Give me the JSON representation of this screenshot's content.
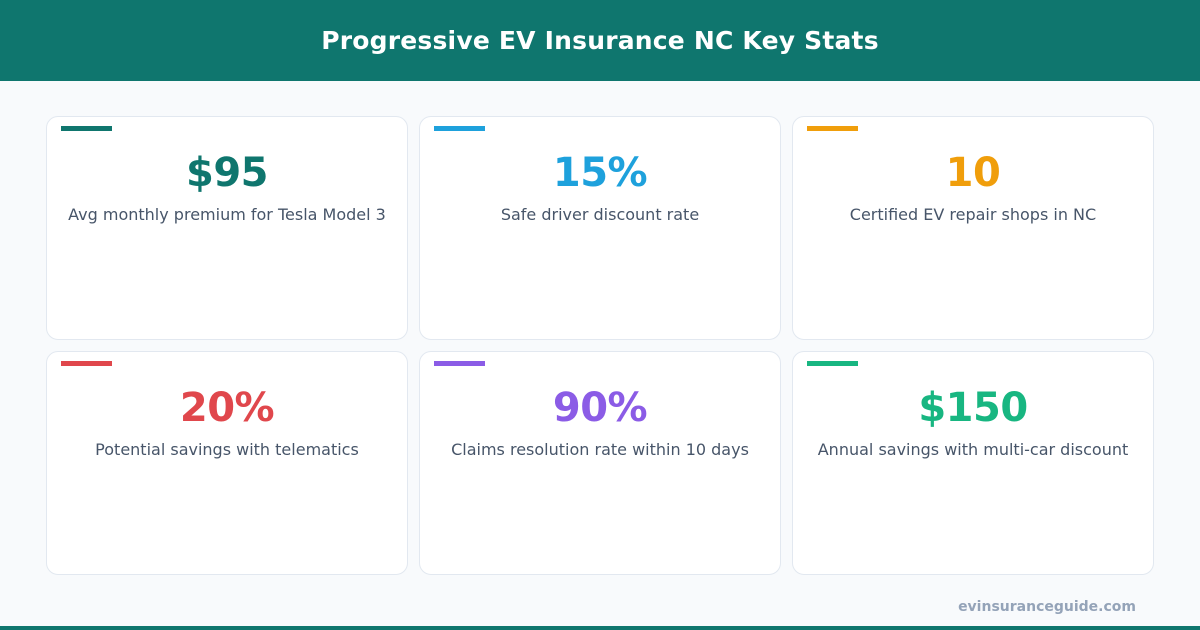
{
  "header": {
    "title": "Progressive EV Insurance NC Key Stats"
  },
  "stats": [
    {
      "value": "$95",
      "label": "Avg monthly premium for Tesla Model 3",
      "color": "#0f766e"
    },
    {
      "value": "15%",
      "label": "Safe driver discount rate",
      "color": "#1ea1dc"
    },
    {
      "value": "10",
      "label": "Certified EV repair shops in NC",
      "color": "#f09e0b"
    },
    {
      "value": "20%",
      "label": "Potential savings with telematics",
      "color": "#e0474c"
    },
    {
      "value": "90%",
      "label": "Claims resolution rate within 10 days",
      "color": "#8b5ce6"
    },
    {
      "value": "$150",
      "label": "Annual savings with multi-car discount",
      "color": "#18b681"
    }
  ],
  "footer": {
    "site": "evinsuranceguide.com"
  },
  "colors": {
    "brand": "#0f766e",
    "background": "#f8fafc",
    "label_text": "#475569",
    "footer_text": "#94a3b8"
  }
}
